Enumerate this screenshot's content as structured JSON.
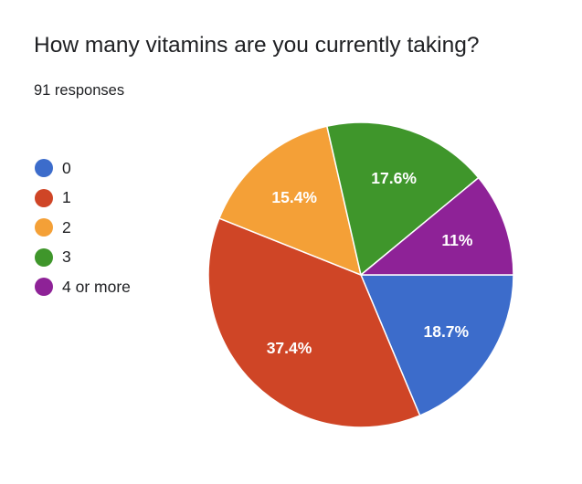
{
  "question": {
    "title": "How many vitamins are you currently taking?",
    "response_count": "91 responses"
  },
  "chart_data": {
    "type": "pie",
    "categories": [
      "0",
      "1",
      "2",
      "3",
      "4 or more"
    ],
    "values": [
      18.7,
      37.4,
      15.4,
      17.6,
      11.0
    ],
    "labels": [
      "18.7%",
      "37.4%",
      "15.4%",
      "17.6%",
      "11%"
    ],
    "colors": [
      "#3c6ccb",
      "#cf4526",
      "#f4a037",
      "#3f962b",
      "#8e2297"
    ],
    "start_angle_deg": 90,
    "direction": "clockwise",
    "legend_position": "left"
  }
}
